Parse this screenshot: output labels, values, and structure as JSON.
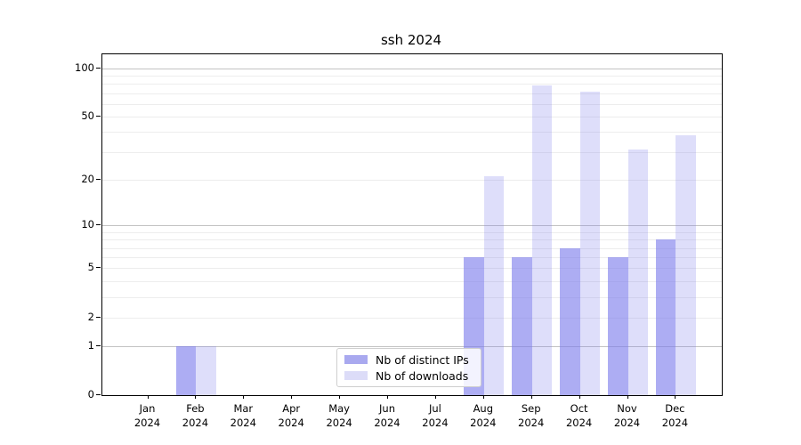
{
  "title": "ssh 2024",
  "legend": {
    "items": [
      {
        "label": "Nb of distinct IPs",
        "color": "#a9a9ef"
      },
      {
        "label": "Nb of downloads",
        "color": "#dcdcf8"
      }
    ]
  },
  "chart_data": {
    "type": "bar",
    "title": "ssh 2024",
    "categories": [
      {
        "month": "Jan",
        "year": "2024"
      },
      {
        "month": "Feb",
        "year": "2024"
      },
      {
        "month": "Mar",
        "year": "2024"
      },
      {
        "month": "Apr",
        "year": "2024"
      },
      {
        "month": "May",
        "year": "2024"
      },
      {
        "month": "Jun",
        "year": "2024"
      },
      {
        "month": "Jul",
        "year": "2024"
      },
      {
        "month": "Aug",
        "year": "2024"
      },
      {
        "month": "Sep",
        "year": "2024"
      },
      {
        "month": "Oct",
        "year": "2024"
      },
      {
        "month": "Nov",
        "year": "2024"
      },
      {
        "month": "Dec",
        "year": "2024"
      }
    ],
    "series": [
      {
        "name": "Nb of distinct IPs",
        "values": [
          0,
          1,
          0,
          0,
          0,
          0,
          0,
          6,
          6,
          7,
          6,
          8
        ],
        "bar_color": "rgba(123,123,235,0.62)",
        "legend_color": "#a9a9ef"
      },
      {
        "name": "Nb of downloads",
        "values": [
          0,
          1,
          0,
          0,
          0,
          0,
          0,
          21,
          78,
          72,
          31,
          38
        ],
        "bar_color": "rgba(123,123,235,0.25)",
        "legend_color": "#dcdcf8"
      }
    ],
    "yscale": "log1p",
    "ylim": [
      0,
      122
    ],
    "y_tick_values": [
      0,
      1,
      2,
      5,
      10,
      20,
      50,
      100
    ],
    "y_major_gridlines": [
      1,
      10,
      100
    ],
    "y_minor_gridlines": [
      2,
      3,
      4,
      5,
      6,
      7,
      8,
      9,
      20,
      30,
      40,
      50,
      60,
      70,
      80,
      90
    ],
    "grid": true,
    "legend_position": "lower center"
  }
}
